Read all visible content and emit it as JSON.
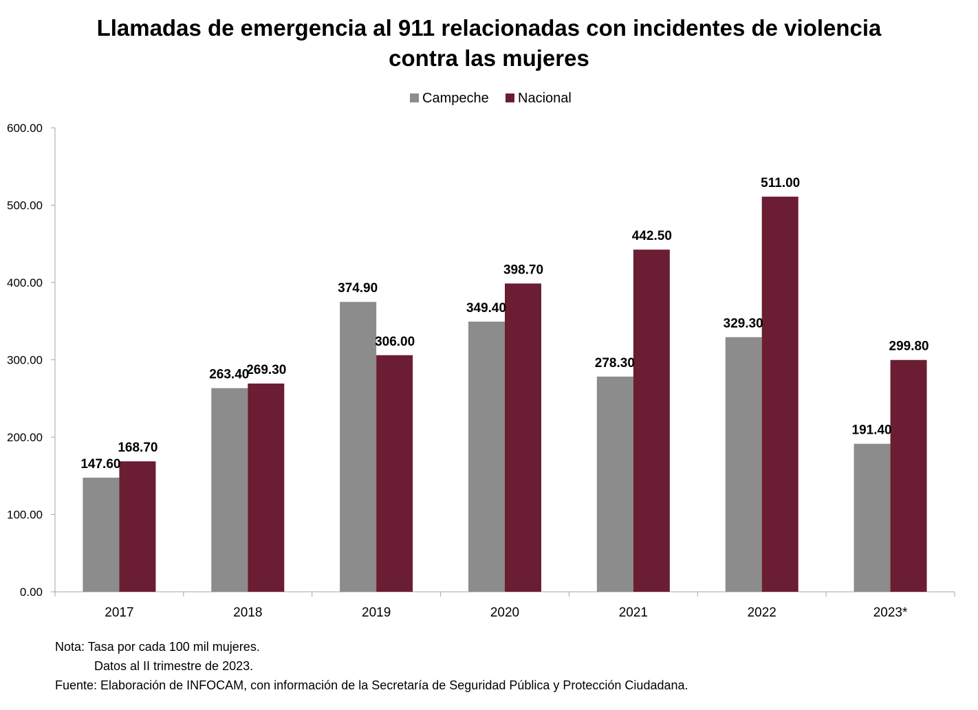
{
  "colors": {
    "campeche": "#8c8c8c",
    "nacional": "#6b1d33",
    "axis": "#a6a6a6"
  },
  "chart_data": {
    "type": "bar",
    "title_lines": [
      "Llamadas de emergencia al 911 relacionadas con incidentes de violencia",
      "contra las mujeres"
    ],
    "xlabel": "",
    "ylabel": "",
    "categories": [
      "2017",
      "2018",
      "2019",
      "2020",
      "2021",
      "2022",
      "2023*"
    ],
    "series": [
      {
        "name": "Campeche",
        "values": [
          147.6,
          263.4,
          374.9,
          349.4,
          278.3,
          329.3,
          191.4
        ],
        "labels": [
          "147.60",
          "263.40",
          "374.90",
          "349.40",
          "278.30",
          "329.30",
          "191.40"
        ]
      },
      {
        "name": "Nacional",
        "values": [
          168.7,
          269.3,
          306.0,
          398.7,
          442.5,
          511.0,
          299.8
        ],
        "labels": [
          "168.70",
          "269.30",
          "306.00",
          "398.70",
          "442.50",
          "511.00",
          "299.80"
        ]
      }
    ],
    "ylim": [
      0,
      600
    ],
    "yticks": [
      0,
      100,
      200,
      300,
      400,
      500,
      600
    ],
    "ytick_labels": [
      "0.00",
      "100.00",
      "200.00",
      "300.00",
      "400.00",
      "500.00",
      "600.00"
    ],
    "legend_position": "top-center",
    "grid": false
  },
  "footnotes": {
    "nota": "Nota: Tasa por cada 100 mil mujeres.",
    "datos": "Datos al II trimestre de 2023.",
    "fuente": "Fuente: Elaboración de INFOCAM, con información de la Secretaría de Seguridad Pública y Protección Ciudadana."
  }
}
